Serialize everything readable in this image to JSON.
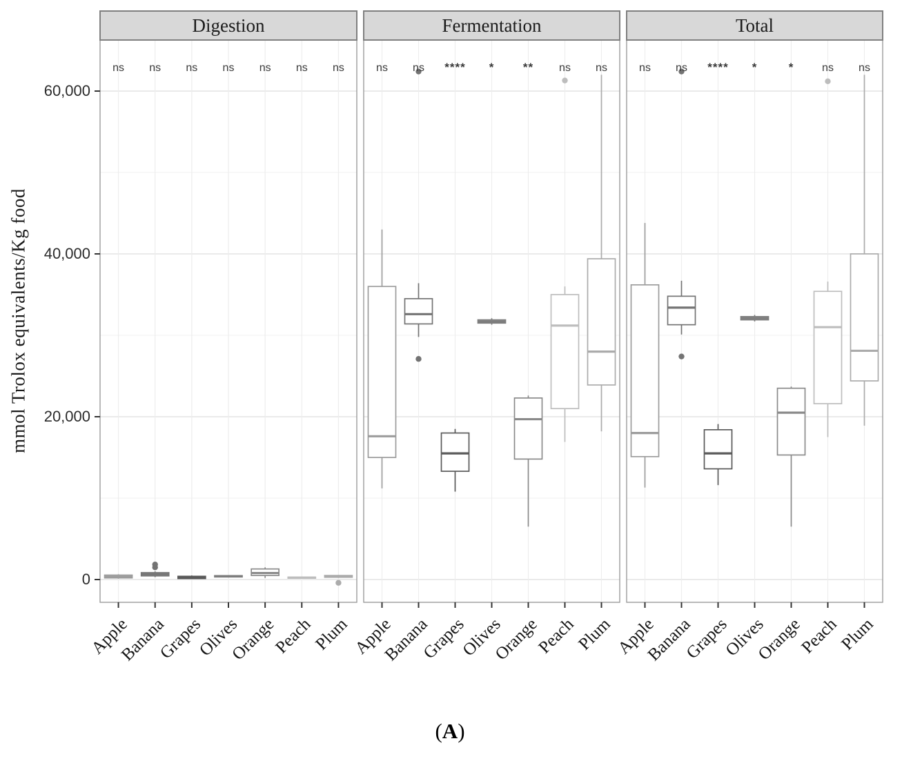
{
  "figure_caption": {
    "open": "(",
    "letter": "A",
    "close": ")"
  },
  "y_axis": {
    "title": "mmol Trolox equivalents/Kg food",
    "tick_labels": [
      "0",
      "20,000",
      "40,000",
      "60,000"
    ],
    "tick_values": [
      0,
      20000,
      40000,
      60000
    ],
    "minor_values": [
      10000,
      30000,
      50000
    ]
  },
  "chart_data": {
    "type": "boxplot",
    "title": "",
    "xlabel": "",
    "ylabel": "mmol Trolox equivalents/Kg food",
    "ylim": [
      -2800,
      67500
    ],
    "grid": true,
    "legend_position": "none",
    "categories": [
      "Apple",
      "Banana",
      "Grapes",
      "Olives",
      "Orange",
      "Peach",
      "Plum"
    ],
    "colors": {
      "Apple": "#9c9c9c",
      "Banana": "#737373",
      "Grapes": "#595959",
      "Olives": "#7d7d7d",
      "Orange": "#8a8a8a",
      "Peach": "#bdbdbd",
      "Plum": "#ababab"
    },
    "facets": [
      {
        "label": "Digestion",
        "significance": [
          "ns",
          "ns",
          "ns",
          "ns",
          "ns",
          "ns",
          "ns"
        ],
        "boxes": [
          {
            "category": "Apple",
            "low": 100,
            "q1": 200,
            "median": 350,
            "q3": 550,
            "high": 650,
            "outliers": []
          },
          {
            "category": "Banana",
            "low": 300,
            "q1": 450,
            "median": 650,
            "q3": 850,
            "high": 1000,
            "outliers": [
              1500,
              1850
            ]
          },
          {
            "category": "Grapes",
            "low": 50,
            "q1": 120,
            "median": 250,
            "q3": 400,
            "high": 500,
            "outliers": []
          },
          {
            "category": "Olives",
            "low": 250,
            "q1": 320,
            "median": 400,
            "q3": 480,
            "high": 550,
            "outliers": []
          },
          {
            "category": "Orange",
            "low": 200,
            "q1": 500,
            "median": 800,
            "q3": 1300,
            "high": 1500,
            "outliers": []
          },
          {
            "category": "Peach",
            "low": 100,
            "q1": 160,
            "median": 230,
            "q3": 300,
            "high": 360,
            "outliers": []
          },
          {
            "category": "Plum",
            "low": 200,
            "q1": 280,
            "median": 380,
            "q3": 500,
            "high": 560,
            "outliers": [
              -400
            ]
          }
        ]
      },
      {
        "label": "Fermentation",
        "significance": [
          "ns",
          "ns",
          "****",
          "*",
          "**",
          "ns",
          "ns"
        ],
        "boxes": [
          {
            "category": "Apple",
            "low": 11200,
            "q1": 15000,
            "median": 17600,
            "q3": 36000,
            "high": 43000,
            "outliers": []
          },
          {
            "category": "Banana",
            "low": 29800,
            "q1": 31400,
            "median": 32600,
            "q3": 34500,
            "high": 36400,
            "outliers": [
              27100,
              62400
            ]
          },
          {
            "category": "Grapes",
            "low": 10800,
            "q1": 13300,
            "median": 15500,
            "q3": 18000,
            "high": 18500,
            "outliers": []
          },
          {
            "category": "Olives",
            "low": 31300,
            "q1": 31500,
            "median": 31700,
            "q3": 31900,
            "high": 32100,
            "outliers": []
          },
          {
            "category": "Orange",
            "low": 6500,
            "q1": 14800,
            "median": 19700,
            "q3": 22300,
            "high": 22600,
            "outliers": []
          },
          {
            "category": "Peach",
            "low": 16900,
            "q1": 21000,
            "median": 31200,
            "q3": 35000,
            "high": 36000,
            "outliers": [
              61300
            ]
          },
          {
            "category": "Plum",
            "low": 18200,
            "q1": 23900,
            "median": 28000,
            "q3": 39400,
            "high": 62000,
            "outliers": []
          }
        ]
      },
      {
        "label": "Total",
        "significance": [
          "ns",
          "ns",
          "****",
          "*",
          "*",
          "ns",
          "ns"
        ],
        "boxes": [
          {
            "category": "Apple",
            "low": 11300,
            "q1": 15100,
            "median": 18000,
            "q3": 36200,
            "high": 43800,
            "outliers": []
          },
          {
            "category": "Banana",
            "low": 30100,
            "q1": 31300,
            "median": 33400,
            "q3": 34800,
            "high": 36700,
            "outliers": [
              27400,
              62400
            ]
          },
          {
            "category": "Grapes",
            "low": 11600,
            "q1": 13600,
            "median": 15500,
            "q3": 18400,
            "high": 19100,
            "outliers": []
          },
          {
            "category": "Olives",
            "low": 31700,
            "q1": 31900,
            "median": 32100,
            "q3": 32300,
            "high": 32500,
            "outliers": []
          },
          {
            "category": "Orange",
            "low": 6500,
            "q1": 15300,
            "median": 20500,
            "q3": 23500,
            "high": 23700,
            "outliers": []
          },
          {
            "category": "Peach",
            "low": 17500,
            "q1": 21600,
            "median": 31000,
            "q3": 35400,
            "high": 36600,
            "outliers": [
              61200
            ]
          },
          {
            "category": "Plum",
            "low": 18900,
            "q1": 24400,
            "median": 28100,
            "q3": 40000,
            "high": 62000,
            "outliers": []
          }
        ]
      }
    ]
  }
}
